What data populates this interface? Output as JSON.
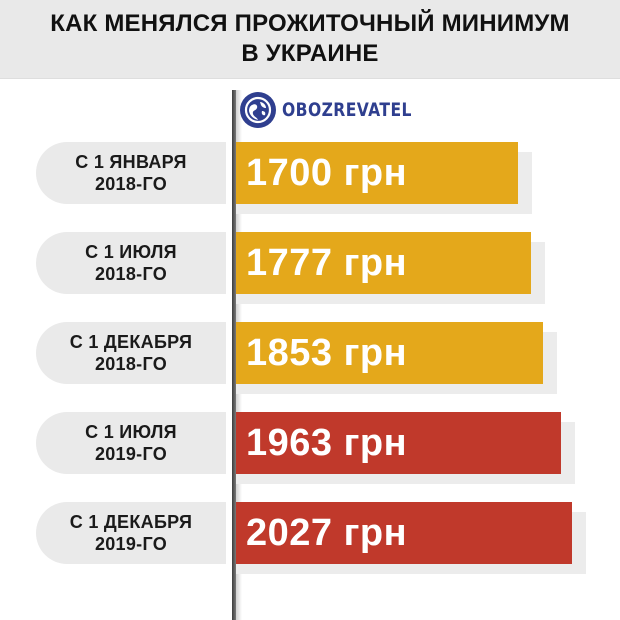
{
  "header": {
    "line1": "КАК МЕНЯЛСЯ ПРОЖИТОЧНЫЙ МИНИМУМ",
    "line2": "В УКРАИНЕ"
  },
  "logo": {
    "name": "OBOZREVATEL",
    "icon": "globe-icon"
  },
  "colors": {
    "bar_2018": "#e4a81b",
    "bar_2019": "#c0392b",
    "logo": "#2f3f8f"
  },
  "chart_data": {
    "type": "bar",
    "orientation": "horizontal",
    "categories": [
      [
        "С 1 ЯНВАРЯ",
        "2018-ГО"
      ],
      [
        "С 1 ИЮЛЯ",
        "2018-ГО"
      ],
      [
        "С 1 ДЕКАБРЯ",
        "2018-ГО"
      ],
      [
        "С 1 ИЮЛЯ",
        "2019-ГО"
      ],
      [
        "С 1 ДЕКАБРЯ",
        "2019-ГО"
      ]
    ],
    "values": [
      1700,
      1777,
      1853,
      1963,
      2027
    ],
    "value_labels": [
      "1700 грн",
      "1777 грн",
      "1853 грн",
      "1963 грн",
      "2027 грн"
    ],
    "bar_colors": [
      "#e4a81b",
      "#e4a81b",
      "#e4a81b",
      "#c0392b",
      "#c0392b"
    ],
    "title": "КАК МЕНЯЛСЯ ПРОЖИТОЧНЫЙ МИНИМУМ В УКРАИНЕ",
    "grid": false,
    "legend": "none"
  }
}
